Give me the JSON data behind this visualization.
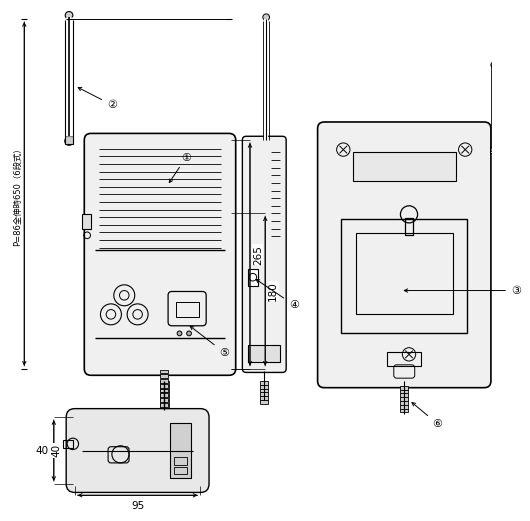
{
  "bg_color": "#ffffff",
  "line_color": "#000000",
  "dim_265": "265",
  "dim_180": "180",
  "dim_40": "40",
  "dim_95": "95",
  "label_P86": "P=86全伸時650（6段式）",
  "label_1": "①",
  "label_2": "②",
  "label_3": "③",
  "label_4": "④",
  "label_5": "⑤",
  "label_6": "⑥"
}
